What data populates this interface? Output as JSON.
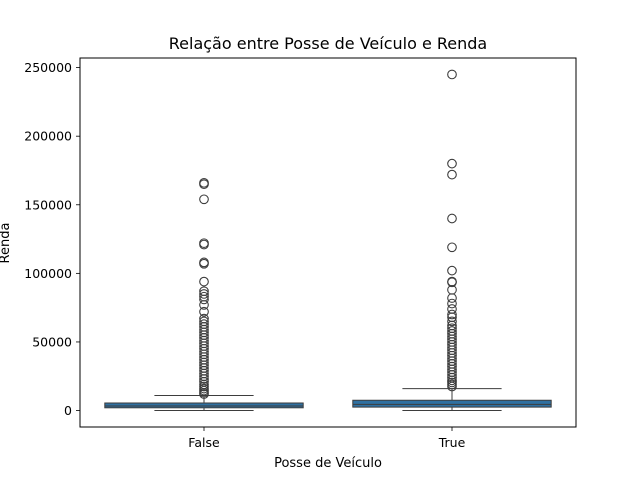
{
  "chart_data": {
    "type": "box",
    "title": "Relação entre Posse de Veículo e Renda",
    "xlabel": "Posse de Veículo",
    "ylabel": "Renda",
    "categories": [
      "False",
      "True"
    ],
    "y_ticks": [
      0,
      50000,
      100000,
      150000,
      200000,
      250000
    ],
    "ylim": [
      -12000,
      257000
    ],
    "grid": false,
    "box_color": "#2f70a1",
    "boxes": [
      {
        "category": "False",
        "q1": 2000,
        "median": 3300,
        "q3": 5500,
        "whisker_low": 0,
        "whisker_high": 11000,
        "outliers": [
          165000,
          166000,
          154000,
          122000,
          121000,
          108000,
          107000,
          94000,
          87000,
          85000,
          83000,
          81000,
          77000,
          72000,
          67000,
          65000,
          63000,
          61000,
          59000,
          57000,
          55000,
          53000,
          51000,
          49000,
          47000,
          45000,
          43000,
          41000,
          39000,
          37000,
          35000,
          33000,
          31000,
          29000,
          27000,
          25000,
          23000,
          21000,
          19000,
          17500,
          16000,
          14500,
          13000,
          12000
        ]
      },
      {
        "category": "True",
        "q1": 2500,
        "median": 4500,
        "q3": 7500,
        "whisker_low": 0,
        "whisker_high": 16000,
        "outliers": [
          245000,
          180000,
          172000,
          140000,
          119000,
          102000,
          94000,
          93500,
          88000,
          82000,
          78000,
          74000,
          70000,
          68000,
          65000,
          62000,
          60000,
          58000,
          56000,
          54000,
          52000,
          50000,
          48000,
          46000,
          44000,
          42000,
          40000,
          38000,
          36000,
          34000,
          32000,
          30000,
          28000,
          26000,
          24000,
          22000,
          20500,
          19000,
          17500
        ]
      }
    ]
  }
}
